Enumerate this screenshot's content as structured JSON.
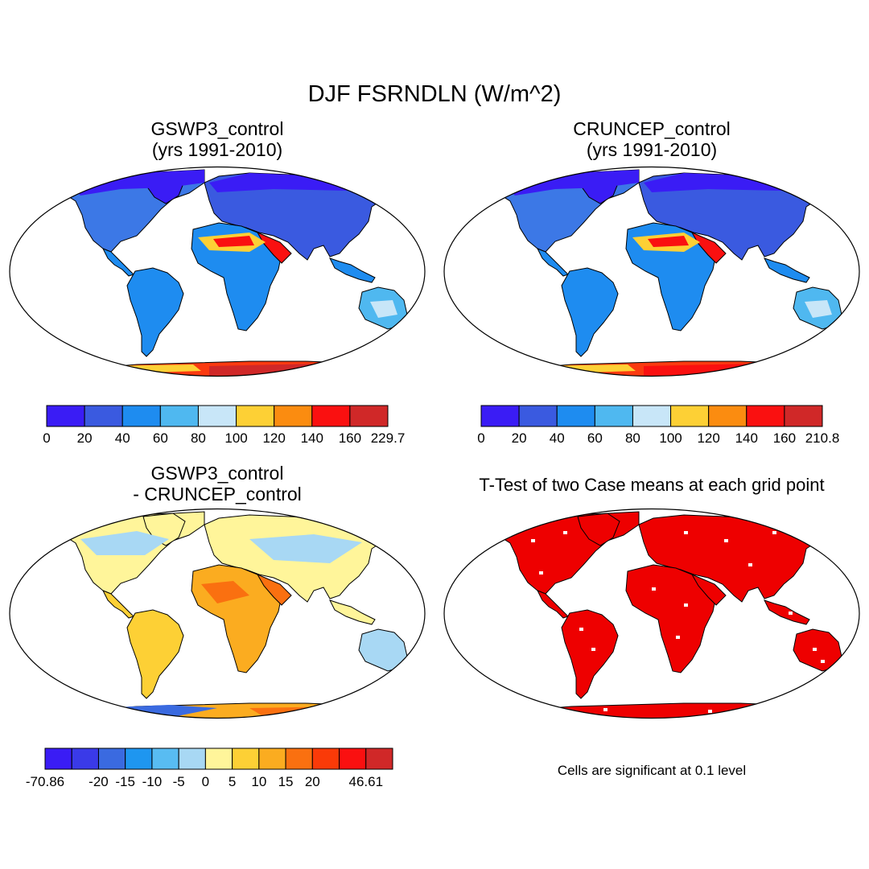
{
  "figure": {
    "title": "DJF FSRNDLN (W/m^2)"
  },
  "panels": {
    "gswp3": {
      "title_line1": "GSWP3_control",
      "title_line2": "(yrs 1991-2010)",
      "colorbar": {
        "colors": [
          "#3a1cf5",
          "#3a5ae0",
          "#1e8cf0",
          "#4fb8f0",
          "#c8e6f8",
          "#fdd035",
          "#fb8c10",
          "#fa1010",
          "#d02828"
        ],
        "labels": [
          "0",
          "20",
          "40",
          "60",
          "80",
          "100",
          "120",
          "140",
          "160",
          "229.7"
        ]
      }
    },
    "cruncep": {
      "title_line1": "CRUNCEP_control",
      "title_line2": "(yrs 1991-2010)",
      "colorbar": {
        "colors": [
          "#3a1cf5",
          "#3a5ae0",
          "#1e8cf0",
          "#4fb8f0",
          "#c8e6f8",
          "#fdd035",
          "#fb8c10",
          "#fa1010",
          "#d02828"
        ],
        "labels": [
          "0",
          "20",
          "40",
          "60",
          "80",
          "100",
          "120",
          "140",
          "160",
          "210.8"
        ]
      }
    },
    "difference": {
      "title_line1": "GSWP3_control",
      "title_line2": "- CRUNCEP_control",
      "colorbar": {
        "colors": [
          "#3a1cf5",
          "#3a3ae8",
          "#3a6ae0",
          "#1e96f0",
          "#58bcf2",
          "#a8d8f4",
          "#fff59a",
          "#fdd035",
          "#fbac20",
          "#fa7010",
          "#fa3a08",
          "#fa1010",
          "#d02828"
        ],
        "labels": [
          "-70.86",
          "",
          "-20",
          "-15",
          "-10",
          "-5",
          "0",
          "5",
          "10",
          "15",
          "20",
          "",
          "46.61"
        ]
      }
    },
    "ttest": {
      "title": "T-Test of two Case means at each grid point",
      "note": "Cells are significant at 0.1 level",
      "significant_color": "#ee0000"
    }
  },
  "icons": {
    "continent-shapes": "world-landmass-outline",
    "projection-frame": "robinson-ellipse"
  }
}
